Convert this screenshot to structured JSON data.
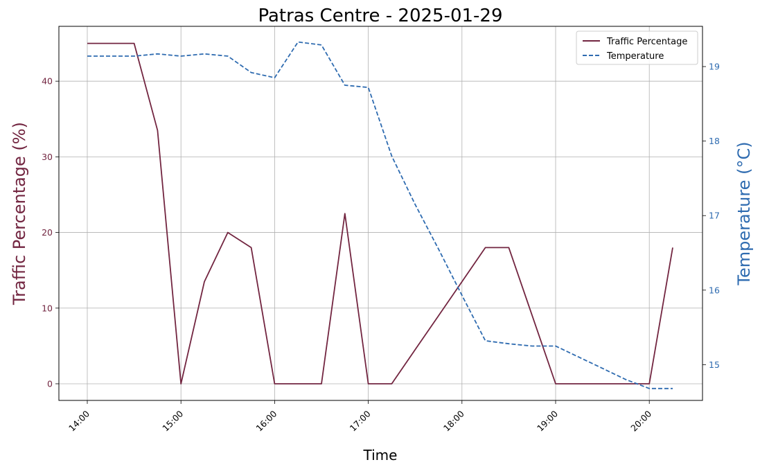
{
  "chart_data": {
    "type": "line",
    "title": "Patras Centre - 2025-01-29",
    "xlabel": "Time",
    "ylabel_left": "Traffic Percentage (%)",
    "ylabel_right": "Temperature (°C)",
    "x_ticks": [
      "14:00",
      "15:00",
      "16:00",
      "17:00",
      "18:00",
      "19:00",
      "20:00"
    ],
    "ylim_left": [
      -2.2,
      47.25
    ],
    "yticks_left": [
      0,
      10,
      20,
      30,
      40
    ],
    "ylim_right": [
      14.52,
      19.54
    ],
    "yticks_right": [
      15,
      16,
      17,
      18,
      19
    ],
    "grid": true,
    "legend_position": "top-right",
    "x": [
      "14:00",
      "14:15",
      "14:30",
      "14:45",
      "15:00",
      "15:15",
      "15:30",
      "15:45",
      "16:00",
      "16:15",
      "16:30",
      "16:45",
      "17:00",
      "17:15",
      "17:30",
      "17:45",
      "18:00",
      "18:15",
      "18:30",
      "18:45",
      "19:00",
      "19:15",
      "19:30",
      "19:45",
      "20:00",
      "20:15"
    ],
    "series": [
      {
        "name": "Traffic Percentage",
        "axis": "left",
        "color": "#722540",
        "style": "solid",
        "values": [
          45,
          45,
          45,
          33.5,
          0,
          13.5,
          20,
          18,
          0,
          0,
          0,
          22.5,
          0,
          0,
          4.5,
          9,
          13.5,
          18,
          18,
          9,
          0,
          0,
          0,
          0,
          0,
          18
        ]
      },
      {
        "name": "Temperature",
        "axis": "right",
        "color": "#2e6bb0",
        "style": "dashed",
        "values": [
          19.14,
          19.14,
          19.14,
          19.17,
          19.14,
          19.17,
          19.14,
          18.92,
          18.85,
          19.33,
          19.29,
          18.75,
          18.72,
          17.8,
          17.15,
          16.55,
          15.93,
          15.32,
          15.28,
          15.25,
          15.25,
          15.1,
          14.95,
          14.8,
          14.68,
          14.68
        ]
      }
    ]
  }
}
